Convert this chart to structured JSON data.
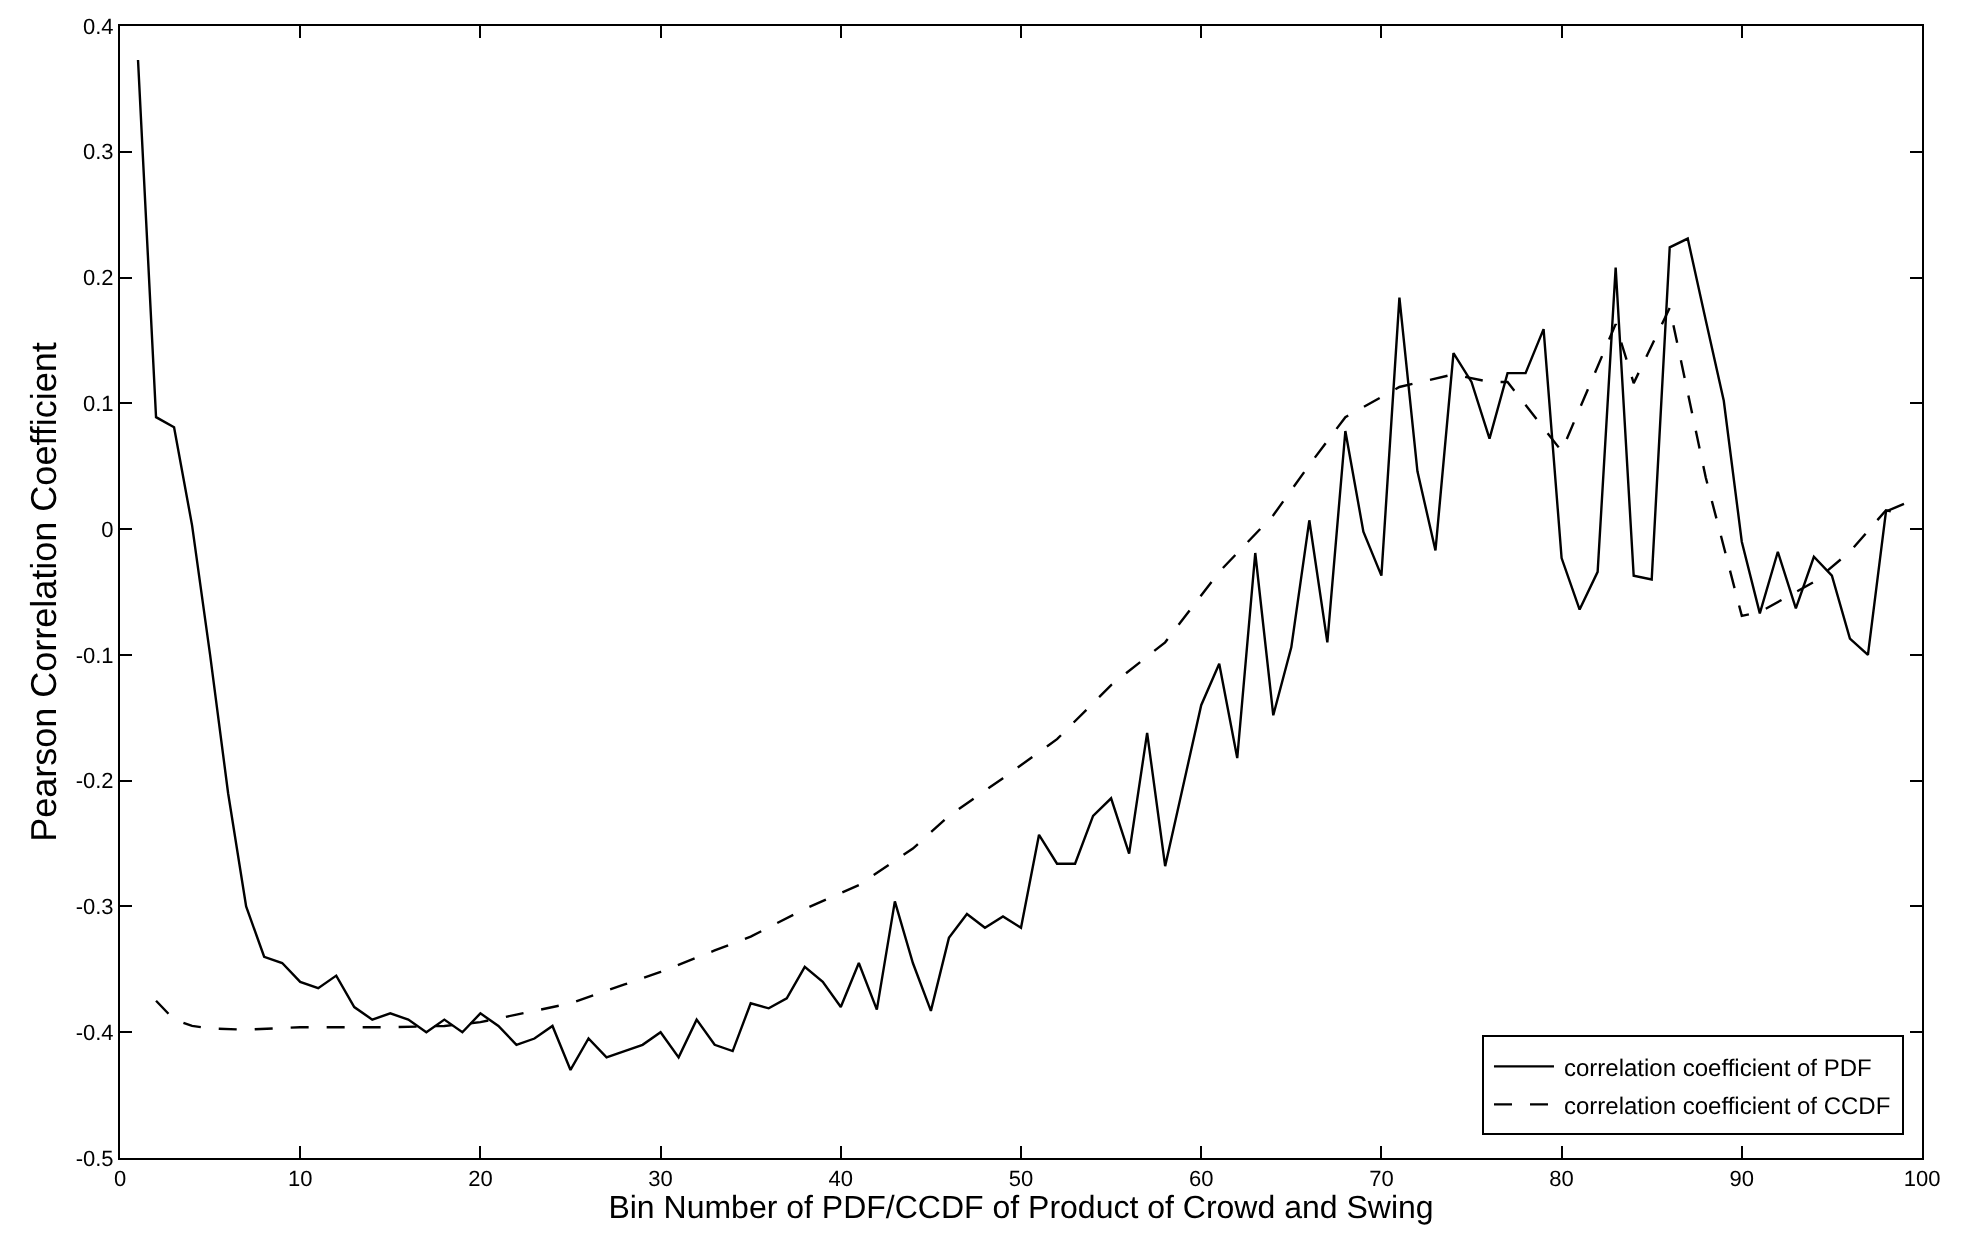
{
  "chart_data": {
    "type": "line",
    "xlabel": "Bin Number of PDF/CCDF of Product of Crowd and Swing",
    "ylabel": "Pearson Correlation Coefficient",
    "xlim": [
      0,
      100
    ],
    "xticks": [
      0,
      10,
      20,
      30,
      40,
      50,
      60,
      70,
      80,
      90,
      100
    ],
    "ylim": [
      -0.5,
      0.4
    ],
    "yticks": [
      -0.5,
      -0.4,
      -0.3,
      -0.2,
      -0.1,
      0,
      0.1,
      0.2,
      0.3,
      0.4
    ],
    "legend": "bottom right",
    "marker": "none",
    "series": [
      {
        "name": "correlation coefficient of PDF",
        "color": "#000000",
        "line_style": "solid",
        "x": [
          1,
          2,
          3,
          4,
          5,
          6,
          7,
          8,
          9,
          10,
          11,
          12,
          13,
          14,
          15,
          16,
          17,
          18,
          19,
          20,
          21,
          22,
          23,
          24,
          25,
          26,
          27,
          28,
          29,
          30,
          31,
          32,
          33,
          34,
          35,
          36,
          37,
          38,
          39,
          40,
          41,
          42,
          43,
          44,
          45,
          46,
          47,
          48,
          49,
          50,
          51,
          52,
          53,
          54,
          55,
          56,
          57,
          58,
          59,
          60,
          61,
          62,
          63,
          64,
          65,
          66,
          67,
          68,
          69,
          70,
          71,
          72,
          73,
          74,
          75,
          76,
          77,
          78,
          79,
          80,
          81,
          82,
          83,
          84,
          85,
          86,
          87,
          88,
          89,
          90,
          91,
          92,
          93,
          94,
          95,
          96,
          97,
          98,
          99
        ],
        "values": [
          0.373,
          0.089,
          0.081,
          0.003,
          -0.1,
          -0.21,
          -0.3,
          -0.34,
          -0.345,
          -0.36,
          -0.365,
          -0.355,
          -0.38,
          -0.39,
          -0.385,
          -0.39,
          -0.4,
          -0.39,
          -0.4,
          -0.385,
          -0.395,
          -0.41,
          -0.405,
          -0.395,
          -0.43,
          -0.405,
          -0.42,
          -0.415,
          -0.41,
          -0.4,
          -0.42,
          -0.39,
          -0.41,
          -0.415,
          -0.377,
          -0.381,
          -0.373,
          -0.348,
          -0.36,
          -0.38,
          -0.345,
          -0.382,
          -0.296,
          -0.345,
          -0.383,
          -0.325,
          -0.306,
          -0.317,
          -0.308,
          -0.317,
          -0.243,
          -0.266,
          -0.266,
          -0.228,
          -0.214,
          -0.258,
          -0.162,
          -0.268,
          -0.204,
          -0.14,
          -0.107,
          -0.182,
          -0.019,
          -0.148,
          -0.094,
          0.007,
          -0.09,
          0.078,
          -0.002,
          -0.037,
          0.184,
          0.046,
          -0.017,
          0.14,
          0.117,
          0.072,
          0.124,
          0.124,
          0.159,
          -0.023,
          -0.064,
          -0.034,
          0.208,
          -0.037,
          -0.04,
          0.224,
          0.231,
          0.166,
          0.102,
          -0.01,
          -0.067,
          -0.018,
          -0.063,
          -0.022,
          -0.037,
          -0.087,
          -0.1,
          0.014,
          0.02
        ]
      },
      {
        "name": "correlation coefficient of CCDF",
        "color": "#000000",
        "line_style": "dashed",
        "x": [
          2,
          3,
          4,
          5,
          7,
          10,
          15,
          18,
          20,
          22,
          25,
          28,
          30,
          33,
          35,
          38,
          41,
          44,
          46,
          49,
          52,
          55,
          58,
          61,
          64,
          66,
          68,
          71,
          74,
          76,
          77,
          80,
          83,
          84,
          86,
          88,
          90,
          91,
          94,
          96,
          98,
          99
        ],
        "values": [
          -0.375,
          -0.39,
          -0.395,
          -0.397,
          -0.398,
          -0.396,
          -0.396,
          -0.395,
          -0.392,
          -0.386,
          -0.377,
          -0.362,
          -0.352,
          -0.335,
          -0.324,
          -0.302,
          -0.283,
          -0.254,
          -0.228,
          -0.198,
          -0.167,
          -0.124,
          -0.09,
          -0.034,
          0.011,
          0.051,
          0.089,
          0.113,
          0.123,
          0.117,
          0.117,
          0.062,
          0.163,
          0.116,
          0.176,
          0.041,
          -0.069,
          -0.066,
          -0.042,
          -0.018,
          0.015,
          0.012
        ]
      }
    ]
  }
}
